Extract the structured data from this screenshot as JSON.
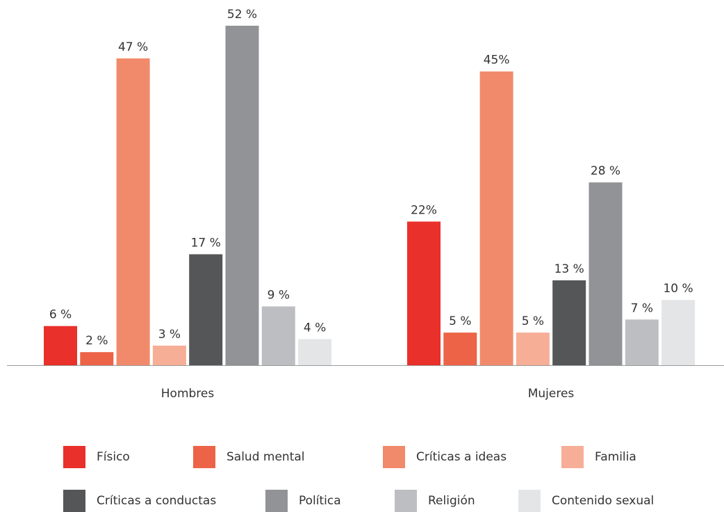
{
  "chart_data": {
    "type": "bar",
    "categories": [
      "Hombres",
      "Mujeres"
    ],
    "series": [
      {
        "name": "Físico",
        "color": "#e9302a",
        "values": [
          6,
          22
        ],
        "labels": [
          "6 %",
          "22%"
        ]
      },
      {
        "name": "Salud mental",
        "color": "#ec6347",
        "values": [
          2,
          5
        ],
        "labels": [
          "2 %",
          "5 %"
        ]
      },
      {
        "name": "Críticas a ideas",
        "color": "#f18a6b",
        "values": [
          47,
          45
        ],
        "labels": [
          "47 %",
          "45%"
        ]
      },
      {
        "name": "Familia",
        "color": "#f7ae96",
        "values": [
          3,
          5
        ],
        "labels": [
          "3 %",
          "5 %"
        ]
      },
      {
        "name": "Críticas a conductas",
        "color": "#555658",
        "values": [
          17,
          13
        ],
        "labels": [
          "17 %",
          "13 %"
        ]
      },
      {
        "name": "Política",
        "color": "#929396",
        "values": [
          52,
          28
        ],
        "labels": [
          "52 %",
          "28 %"
        ]
      },
      {
        "name": "Religión",
        "color": "#bdbec1",
        "values": [
          9,
          7
        ],
        "labels": [
          "9 %",
          "7 %"
        ]
      },
      {
        "name": "Contenido sexual",
        "color": "#e4e5e7",
        "values": [
          4,
          10
        ],
        "labels": [
          "4 %",
          "10 %"
        ]
      }
    ],
    "ylim": [
      0,
      52
    ],
    "grid": false,
    "legend_position": "bottom"
  }
}
